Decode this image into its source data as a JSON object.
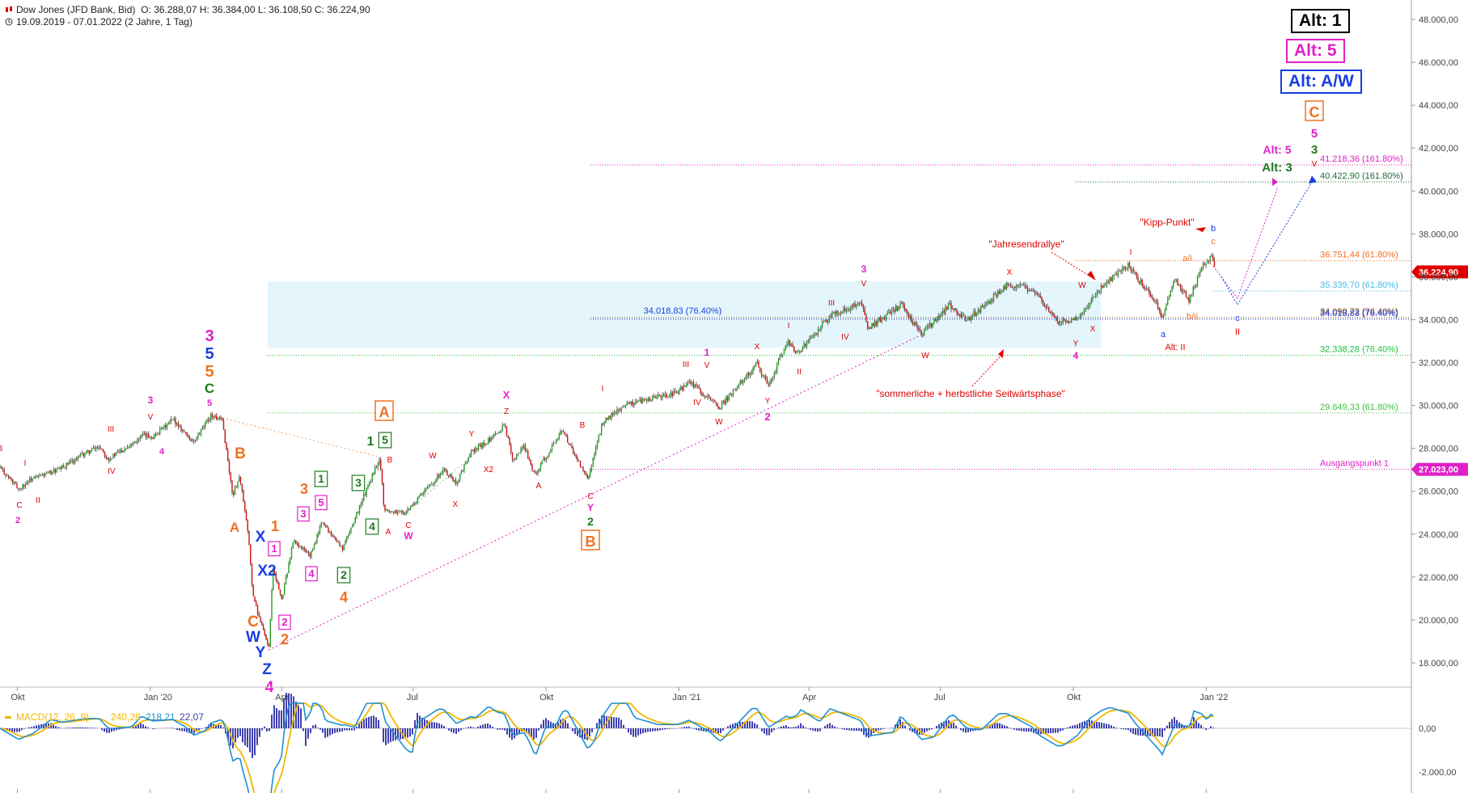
{
  "header": {
    "title": "Dow Jones (JFD Bank, Bid)",
    "ohlc": "O: 36.288,07  H: 36.384,00  L: 36.108,50  C: 36.224,90",
    "range": "19.09.2019 - 07.01.2022  (2 Jahre, 1 Tag)"
  },
  "alt_boxes": [
    {
      "text": "Alt: 1",
      "color": "#000000"
    },
    {
      "text": "Alt: 5",
      "color": "#e020c8"
    },
    {
      "text": "Alt: A/W",
      "color": "#1a3ee0"
    }
  ],
  "chart_data": {
    "type": "line",
    "style": "candlestick",
    "title": "Dow Jones (JFD Bank, Bid)",
    "y_axis_position": "right",
    "ylim": [
      17000,
      49000
    ],
    "y_ticks": [
      18000,
      20000,
      22000,
      24000,
      26000,
      28000,
      30000,
      32000,
      34000,
      36000,
      38000,
      40000,
      42000,
      44000,
      46000,
      48000
    ],
    "y_tick_labels": [
      "18.000,00",
      "20.000,00",
      "22.000,00",
      "24.000,00",
      "26.000,00",
      "28.000,00",
      "30.000,00",
      "32.000,00",
      "34.000,00",
      "36.000,00",
      "38.000,00",
      "40.000,00",
      "42.000,00",
      "44.000,00",
      "46.000,00",
      "48.000,00"
    ],
    "x_tick_labels": [
      "Okt",
      "Jan '20",
      "Apr",
      "Jul",
      "Okt",
      "Jan '21",
      "Apr",
      "Jul",
      "Okt",
      "Jan '22"
    ],
    "x_range": [
      "2019-09-19",
      "2022-01-07"
    ],
    "series": [
      {
        "values": [
          [
            "2019-09-19",
            27100
          ],
          [
            "2019-10-02",
            26100
          ],
          [
            "2019-10-10",
            26550
          ],
          [
            "2019-10-31",
            27050
          ],
          [
            "2019-11-15",
            27700
          ],
          [
            "2019-11-27",
            28100
          ],
          [
            "2019-12-03",
            27500
          ],
          [
            "2019-12-27",
            28600
          ],
          [
            "2020-01-03",
            28550
          ],
          [
            "2020-01-17",
            29350
          ],
          [
            "2020-01-31",
            28250
          ],
          [
            "2020-02-12",
            29550
          ],
          [
            "2020-02-20",
            29250
          ],
          [
            "2020-02-27",
            25800
          ],
          [
            "2020-03-03",
            26700
          ],
          [
            "2020-03-09",
            23850
          ],
          [
            "2020-03-12",
            21200
          ],
          [
            "2020-03-16",
            20200
          ],
          [
            "2020-03-18",
            19900
          ],
          [
            "2020-03-23",
            18600
          ],
          [
            "2020-03-26",
            22500
          ],
          [
            "2020-04-01",
            20900
          ],
          [
            "2020-04-09",
            23700
          ],
          [
            "2020-04-21",
            23000
          ],
          [
            "2020-04-29",
            24600
          ],
          [
            "2020-05-13",
            23300
          ],
          [
            "2020-06-08",
            27600
          ],
          [
            "2020-06-11",
            25100
          ],
          [
            "2020-06-26",
            25000
          ],
          [
            "2020-07-22",
            27000
          ],
          [
            "2020-07-31",
            26400
          ],
          [
            "2020-08-10",
            27800
          ],
          [
            "2020-08-28",
            28650
          ],
          [
            "2020-09-02",
            29200
          ],
          [
            "2020-09-08",
            27500
          ],
          [
            "2020-09-16",
            28100
          ],
          [
            "2020-09-23",
            26750
          ],
          [
            "2020-10-12",
            28850
          ],
          [
            "2020-10-30",
            26500
          ],
          [
            "2020-11-09",
            29200
          ],
          [
            "2020-11-25",
            30050
          ],
          [
            "2020-12-31",
            30600
          ],
          [
            "2021-01-08",
            31100
          ],
          [
            "2021-01-29",
            29900
          ],
          [
            "2021-02-24",
            31960
          ],
          [
            "2021-03-04",
            30900
          ],
          [
            "2021-03-17",
            33000
          ],
          [
            "2021-03-24",
            32400
          ],
          [
            "2021-04-16",
            34200
          ],
          [
            "2021-05-07",
            34780
          ],
          [
            "2021-05-12",
            33600
          ],
          [
            "2021-06-04",
            34700
          ],
          [
            "2021-06-18",
            33290
          ],
          [
            "2021-07-07",
            34700
          ],
          [
            "2021-07-19",
            33950
          ],
          [
            "2021-08-16",
            35600
          ],
          [
            "2021-09-02",
            35450
          ],
          [
            "2021-09-20",
            33900
          ],
          [
            "2021-10-04",
            34000
          ],
          [
            "2021-10-21",
            35600
          ],
          [
            "2021-11-08",
            36550
          ],
          [
            "2021-11-30",
            34500
          ],
          [
            "2021-12-01",
            33950
          ],
          [
            "2021-12-10",
            35950
          ],
          [
            "2021-12-20",
            34900
          ],
          [
            "2021-12-29",
            36500
          ],
          [
            "2022-01-05",
            36950
          ],
          [
            "2022-01-07",
            36225
          ]
        ]
      }
    ],
    "horizontal_levels": [
      {
        "label": "41.218,36 (161.80%)",
        "value": 41218.36,
        "color": "#e020c8"
      },
      {
        "label": "40.422,90 (161.80%)",
        "value": 40422.9,
        "color": "#1e6b3a"
      },
      {
        "label": "36.751,44 (61.80%)",
        "value": 36751.44,
        "color": "#f07020"
      },
      {
        "label": "35.339,70 (61.80%)",
        "value": 35339.7,
        "color": "#48b8e8"
      },
      {
        "label": "34.090,72 (76.40%)",
        "value": 34090.72,
        "color": "#8b4513"
      },
      {
        "label": "34.018,83 (76.40%)",
        "value": 34018.83,
        "color": "#1a3ee0"
      },
      {
        "label": "32.338,28 (76.40%)",
        "value": 32338.28,
        "color": "#20c040"
      },
      {
        "label": "29.649,33 (61.80%)",
        "value": 29649.33,
        "color": "#40c040"
      },
      {
        "label": "Ausgangspunkt 1",
        "value": 27023.0,
        "color": "#e020c8"
      }
    ],
    "price_flags": [
      {
        "label": "36.224,90",
        "value": 36224.9,
        "color": "#e00000"
      },
      {
        "label": "27.023,00",
        "value": 27023.0,
        "color": "#e020c8"
      }
    ],
    "notes": [
      {
        "text": "\"Kipp-Punkt\"",
        "color": "#e00000"
      },
      {
        "text": "\"Jahresendrallye\"",
        "color": "#e00000"
      },
      {
        "text": "\"sommerliche + herbstliche Seitwärtsphase\"",
        "color": "#e00000"
      },
      {
        "text": "Alt: 5",
        "color": "#e020c8"
      },
      {
        "text": "Alt: 3",
        "color": "#1e7a1e"
      },
      {
        "text": "Alt: II",
        "color": "#e00000"
      }
    ],
    "macd": {
      "label": "MACD(12, 26, 9)",
      "values": [
        "240,28",
        "218,21",
        "22,07"
      ],
      "colors": [
        "#f0b800",
        "#2090d0",
        "#4040b0"
      ],
      "y_tick_labels": [
        "0,00",
        "-2.000,00"
      ]
    }
  }
}
